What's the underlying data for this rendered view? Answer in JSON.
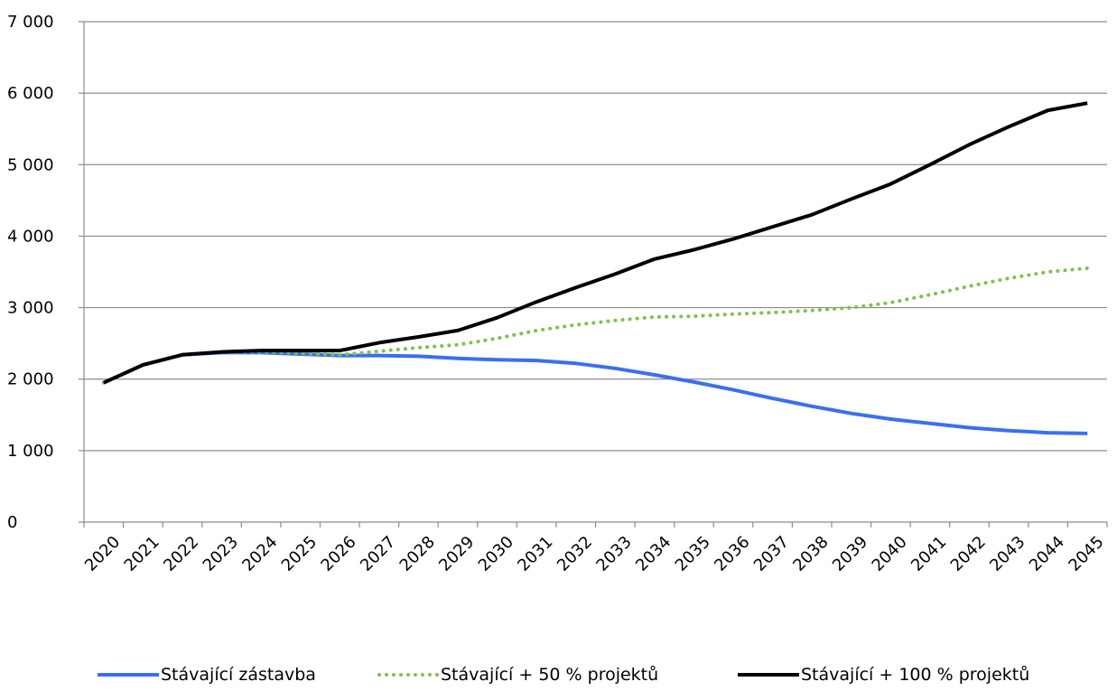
{
  "chart_data": {
    "type": "line",
    "title": "",
    "xlabel": "",
    "ylabel": "",
    "ylim": [
      0,
      7000
    ],
    "y_ticks": [
      0,
      1000,
      2000,
      3000,
      4000,
      5000,
      6000,
      7000
    ],
    "y_tick_labels": [
      "0",
      "1 000",
      "2 000",
      "3 000",
      "4 000",
      "5 000",
      "6 000",
      "7 000"
    ],
    "categories": [
      "2020",
      "2021",
      "2022",
      "2023",
      "2024",
      "2025",
      "2026",
      "2027",
      "2028",
      "2029",
      "2030",
      "2031",
      "2032",
      "2033",
      "2034",
      "2035",
      "2036",
      "2037",
      "2038",
      "2039",
      "2040",
      "2041",
      "2042",
      "2043",
      "2044",
      "2045"
    ],
    "grid": "horizontal",
    "legend_position": "bottom",
    "series": [
      {
        "name": "Stávající zástavba",
        "color": "#3a6ff2",
        "style": "solid",
        "values": [
          1950,
          2200,
          2340,
          2370,
          2370,
          2350,
          2330,
          2330,
          2320,
          2290,
          2270,
          2260,
          2220,
          2150,
          2060,
          1960,
          1850,
          1730,
          1620,
          1520,
          1440,
          1380,
          1320,
          1280,
          1250,
          1240
        ]
      },
      {
        "name": "Stávající + 50 % projektů",
        "color": "#7fc24a",
        "style": "dotted",
        "values": [
          1950,
          2200,
          2340,
          2380,
          2380,
          2360,
          2340,
          2390,
          2440,
          2480,
          2570,
          2680,
          2760,
          2820,
          2870,
          2880,
          2910,
          2930,
          2960,
          3000,
          3070,
          3180,
          3300,
          3410,
          3500,
          3550
        ]
      },
      {
        "name": "Stávající + 100 % projektů",
        "color": "#000000",
        "style": "solid",
        "values": [
          1950,
          2200,
          2340,
          2380,
          2400,
          2400,
          2400,
          2510,
          2590,
          2680,
          2860,
          3080,
          3280,
          3470,
          3680,
          3810,
          3960,
          4130,
          4300,
          4520,
          4730,
          5000,
          5280,
          5530,
          5760,
          5860
        ]
      }
    ]
  }
}
